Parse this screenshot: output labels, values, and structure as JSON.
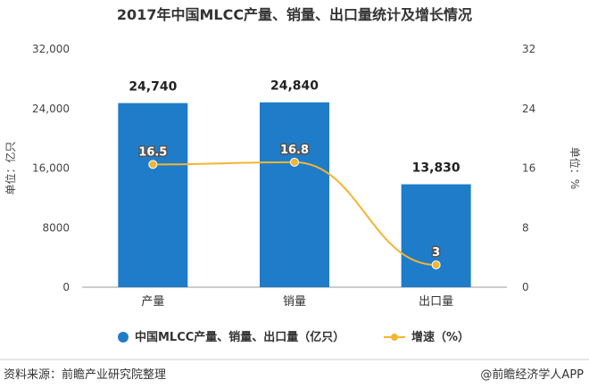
{
  "chart_data": {
    "type": "bar+line",
    "title": "2017年中国MLCC产量、销量、出口量统计及增长情况",
    "categories": [
      "产量",
      "销量",
      "出口量"
    ],
    "series": [
      {
        "name": "中国MLCC产量、销量、出口量（亿只）",
        "type": "bar",
        "axis": "left",
        "values": [
          24740,
          24840,
          13830
        ],
        "labels": [
          "24,740",
          "24,840",
          "13,830"
        ]
      },
      {
        "name": "增速（%）",
        "type": "line",
        "axis": "right",
        "values": [
          16.5,
          16.8,
          3
        ],
        "labels": [
          "16.5",
          "16.8",
          "3"
        ]
      }
    ],
    "y_left": {
      "label": "单位：亿只",
      "range": [
        0,
        32000
      ],
      "ticks": [
        0,
        8000,
        16000,
        24000,
        32000
      ],
      "tick_labels": [
        "0",
        "8000",
        "16,000",
        "24,000",
        "32,000"
      ]
    },
    "y_right": {
      "label": "单位：%",
      "range": [
        0,
        32
      ],
      "ticks": [
        0,
        8,
        16,
        24,
        32
      ],
      "tick_labels": [
        "0",
        "8",
        "16",
        "24",
        "32"
      ]
    },
    "grid": false,
    "legend_placement": "bottom",
    "colors": {
      "bar": "#1f7cc9",
      "line": "#f2b530"
    }
  },
  "footer": {
    "source": "资料来源：前瞻产业研究院整理",
    "brand": "@前瞻经济学人APP"
  }
}
